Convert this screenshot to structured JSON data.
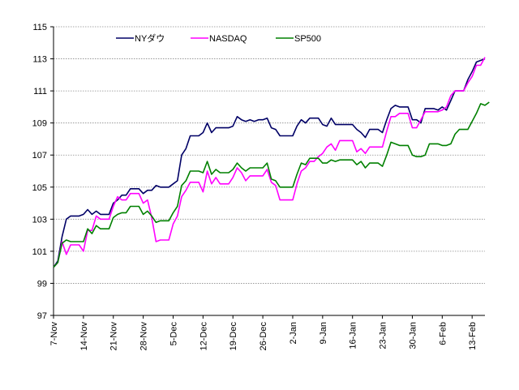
{
  "chart_data": {
    "type": "line",
    "ylim": [
      97,
      115
    ],
    "yticks": [
      "97",
      "99",
      "101",
      "103",
      "105",
      "107",
      "109",
      "111",
      "113",
      "115"
    ],
    "xticks": [
      "7-Nov",
      "14-Nov",
      "21-Nov",
      "28-Nov",
      "5-Dec",
      "12-Dec",
      "19-Dec",
      "26-Dec",
      "2-Jan",
      "9-Jan",
      "16-Jan",
      "23-Jan",
      "30-Jan",
      "6-Feb",
      "13-Feb"
    ],
    "grid": "horizontal dotted",
    "legend_position": "top",
    "series": [
      {
        "name": "NYダウ",
        "color": "#000066",
        "values": [
          100.0,
          100.4,
          101.9,
          103.0,
          103.2,
          103.2,
          103.2,
          103.3,
          103.6,
          103.3,
          103.5,
          103.3,
          103.3,
          103.3,
          104.0,
          104.2,
          104.5,
          104.5,
          104.9,
          104.9,
          104.9,
          104.6,
          104.8,
          104.8,
          105.1,
          105.0,
          105.0,
          105.0,
          105.2,
          105.4,
          107.0,
          107.4,
          108.2,
          108.2,
          108.2,
          108.4,
          109.0,
          108.4,
          108.7,
          108.7,
          108.7,
          108.7,
          108.8,
          109.4,
          109.2,
          109.1,
          109.2,
          109.1,
          109.2,
          109.2,
          109.3,
          108.7,
          108.6,
          108.2,
          108.2,
          108.2,
          108.2,
          108.8,
          109.2,
          109.0,
          109.3,
          109.3,
          109.3,
          108.9,
          108.8,
          109.3,
          108.9,
          108.9,
          108.9,
          108.9,
          108.9,
          108.6,
          108.4,
          108.1,
          108.6,
          108.6,
          108.6,
          108.4,
          109.2,
          109.9,
          110.1,
          110.0,
          110.0,
          110.0,
          109.2,
          109.2,
          109.0,
          109.9,
          109.9,
          109.9,
          109.8,
          110.0,
          109.8,
          110.4,
          111.0,
          111.0,
          111.0,
          111.7,
          112.2,
          112.8,
          112.9,
          113.0
        ]
      },
      {
        "name": "NASDAQ",
        "color": "#ff00ff",
        "values": [
          100.0,
          100.3,
          101.6,
          100.8,
          101.4,
          101.4,
          101.4,
          101.0,
          102.3,
          102.3,
          103.2,
          103.0,
          103.0,
          103.0,
          103.8,
          104.4,
          104.2,
          104.2,
          104.6,
          104.6,
          104.6,
          104.0,
          104.2,
          103.1,
          101.6,
          101.7,
          101.7,
          101.7,
          102.7,
          103.2,
          104.4,
          104.8,
          105.3,
          105.3,
          105.3,
          104.7,
          106.0,
          105.2,
          105.6,
          105.2,
          105.2,
          105.2,
          105.6,
          106.2,
          105.9,
          105.4,
          105.7,
          105.7,
          105.7,
          105.7,
          106.1,
          105.3,
          105.1,
          104.2,
          104.2,
          104.2,
          104.2,
          105.2,
          106.0,
          106.2,
          106.6,
          106.6,
          106.9,
          107.1,
          107.5,
          107.7,
          107.3,
          107.9,
          107.9,
          107.9,
          107.9,
          107.2,
          107.4,
          107.1,
          107.5,
          107.5,
          107.5,
          107.5,
          108.5,
          109.4,
          109.4,
          109.6,
          109.6,
          109.6,
          108.7,
          108.7,
          109.2,
          109.7,
          109.7,
          109.7,
          109.7,
          109.8,
          110.0,
          110.7,
          111.0,
          111.0,
          111.0,
          111.5,
          111.9,
          112.6,
          112.6,
          113.1
        ]
      },
      {
        "name": "SP500",
        "color": "#008000",
        "values": [
          100.0,
          100.3,
          101.5,
          101.7,
          101.6,
          101.6,
          101.6,
          101.6,
          102.4,
          102.1,
          102.6,
          102.4,
          102.4,
          102.4,
          103.1,
          103.3,
          103.4,
          103.4,
          103.8,
          103.8,
          103.8,
          103.3,
          103.5,
          103.2,
          102.8,
          102.9,
          102.9,
          102.9,
          103.4,
          103.8,
          105.1,
          105.4,
          106.0,
          106.0,
          106.0,
          105.9,
          106.6,
          105.8,
          106.1,
          105.9,
          105.9,
          105.9,
          106.1,
          106.5,
          106.2,
          106.0,
          106.2,
          106.2,
          106.2,
          106.2,
          106.5,
          105.5,
          105.4,
          105.0,
          105.0,
          105.0,
          105.0,
          105.8,
          106.5,
          106.4,
          106.8,
          106.8,
          106.8,
          106.5,
          106.5,
          106.7,
          106.6,
          106.7,
          106.7,
          106.7,
          106.7,
          106.4,
          106.6,
          106.2,
          106.5,
          106.5,
          106.5,
          106.3,
          107.0,
          107.8,
          107.7,
          107.6,
          107.6,
          107.6,
          107.0,
          106.9,
          106.9,
          107.0,
          107.7,
          107.7,
          107.7,
          107.6,
          107.6,
          107.7,
          108.3,
          108.6,
          108.6,
          108.6,
          109.1,
          109.6,
          110.2,
          110.1,
          110.3
        ]
      }
    ]
  }
}
